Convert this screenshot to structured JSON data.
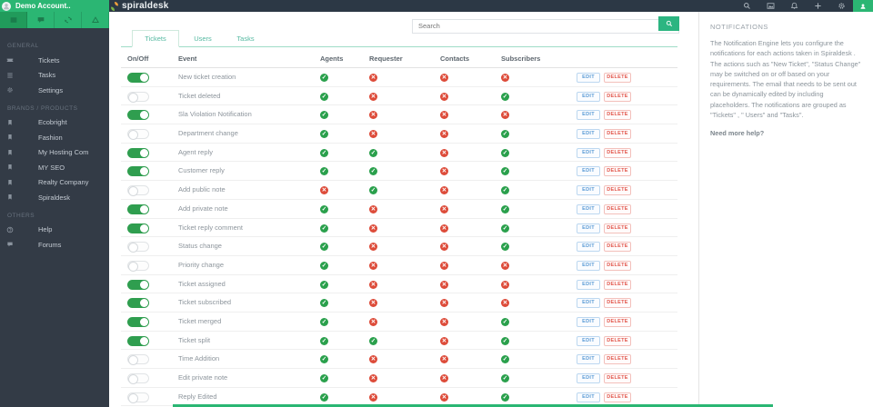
{
  "account": {
    "name": "Demo Account.."
  },
  "brand": {
    "logo_text": "spiraldesk"
  },
  "search": {
    "placeholder": "Search"
  },
  "sidebar": {
    "sections": [
      {
        "label": "GENERAL",
        "items": [
          {
            "label": "Tickets",
            "icon": "ticket-icon"
          },
          {
            "label": "Tasks",
            "icon": "tasks-icon"
          },
          {
            "label": "Settings",
            "icon": "settings-icon"
          }
        ]
      },
      {
        "label": "BRANDS / PRODUCTS",
        "items": [
          {
            "label": "Ecobright",
            "icon": "brand-icon"
          },
          {
            "label": "Fashion",
            "icon": "brand-icon"
          },
          {
            "label": "My Hosting Com",
            "icon": "brand-icon"
          },
          {
            "label": "MY SEO",
            "icon": "brand-icon"
          },
          {
            "label": "Realty Company",
            "icon": "brand-icon"
          },
          {
            "label": "Spiraldesk",
            "icon": "brand-icon"
          }
        ]
      },
      {
        "label": "OTHERS",
        "items": [
          {
            "label": "Help",
            "icon": "help-icon"
          },
          {
            "label": "Forums",
            "icon": "forum-icon"
          }
        ]
      }
    ]
  },
  "tabs": [
    {
      "label": "Tickets",
      "active": true
    },
    {
      "label": "Users",
      "active": false
    },
    {
      "label": "Tasks",
      "active": false
    }
  ],
  "table": {
    "columns": [
      "On/Off",
      "Event",
      "Agents",
      "Requester",
      "Contacts",
      "Subscribers"
    ],
    "edit_label": "EDIT",
    "delete_label": "DELETE",
    "rows": [
      {
        "event": "New ticket creation",
        "on": true,
        "agents": true,
        "requester": false,
        "contacts": false,
        "subscribers": false
      },
      {
        "event": "Ticket deleted",
        "on": false,
        "agents": true,
        "requester": false,
        "contacts": false,
        "subscribers": true
      },
      {
        "event": "Sla Violation Notification",
        "on": true,
        "agents": true,
        "requester": false,
        "contacts": false,
        "subscribers": false
      },
      {
        "event": "Department change",
        "on": false,
        "agents": true,
        "requester": false,
        "contacts": false,
        "subscribers": true
      },
      {
        "event": "Agent reply",
        "on": true,
        "agents": true,
        "requester": true,
        "contacts": false,
        "subscribers": true
      },
      {
        "event": "Customer reply",
        "on": true,
        "agents": true,
        "requester": true,
        "contacts": false,
        "subscribers": true
      },
      {
        "event": "Add public note",
        "on": false,
        "agents": false,
        "requester": true,
        "contacts": false,
        "subscribers": true
      },
      {
        "event": "Add private note",
        "on": true,
        "agents": true,
        "requester": false,
        "contacts": false,
        "subscribers": true
      },
      {
        "event": "Ticket reply comment",
        "on": true,
        "agents": true,
        "requester": false,
        "contacts": false,
        "subscribers": true
      },
      {
        "event": "Status change",
        "on": false,
        "agents": true,
        "requester": false,
        "contacts": false,
        "subscribers": true
      },
      {
        "event": "Priority change",
        "on": false,
        "agents": true,
        "requester": false,
        "contacts": false,
        "subscribers": false
      },
      {
        "event": "Ticket assigned",
        "on": true,
        "agents": true,
        "requester": false,
        "contacts": false,
        "subscribers": false
      },
      {
        "event": "Ticket subscribed",
        "on": true,
        "agents": true,
        "requester": false,
        "contacts": false,
        "subscribers": false
      },
      {
        "event": "Ticket merged",
        "on": true,
        "agents": true,
        "requester": false,
        "contacts": false,
        "subscribers": true
      },
      {
        "event": "Ticket split",
        "on": true,
        "agents": true,
        "requester": true,
        "contacts": false,
        "subscribers": true
      },
      {
        "event": "Time Addition",
        "on": false,
        "agents": true,
        "requester": false,
        "contacts": false,
        "subscribers": true
      },
      {
        "event": "Edit private note",
        "on": false,
        "agents": true,
        "requester": false,
        "contacts": false,
        "subscribers": true
      },
      {
        "event": "Reply Edited",
        "on": false,
        "agents": true,
        "requester": false,
        "contacts": false,
        "subscribers": true
      }
    ]
  },
  "notifications_panel": {
    "title": "NOTIFICATIONS",
    "body": "The Notification Engine lets you configure the notifications for each actions taken in Spiraldesk . The actions such as \"New Ticket\", \"Status Change\" may be switched on or off based on your requirements. The email that needs to be sent out can be dynamically edited by including placeholders. The notifications are grouped as \"Tickets\" , \" Users\" and \"Tasks\".",
    "help_link": "Need more help?"
  },
  "icons": {
    "check": "✓",
    "cross": "✕"
  },
  "colors": {
    "green": "#2bb673",
    "toggle_on": "#2f9e4f",
    "check": "#2aa04c",
    "cross": "#dd4b39",
    "edit_blue": "#5b9bd5",
    "delete_red": "#e2574c",
    "teal_accent": "#2cb581"
  }
}
